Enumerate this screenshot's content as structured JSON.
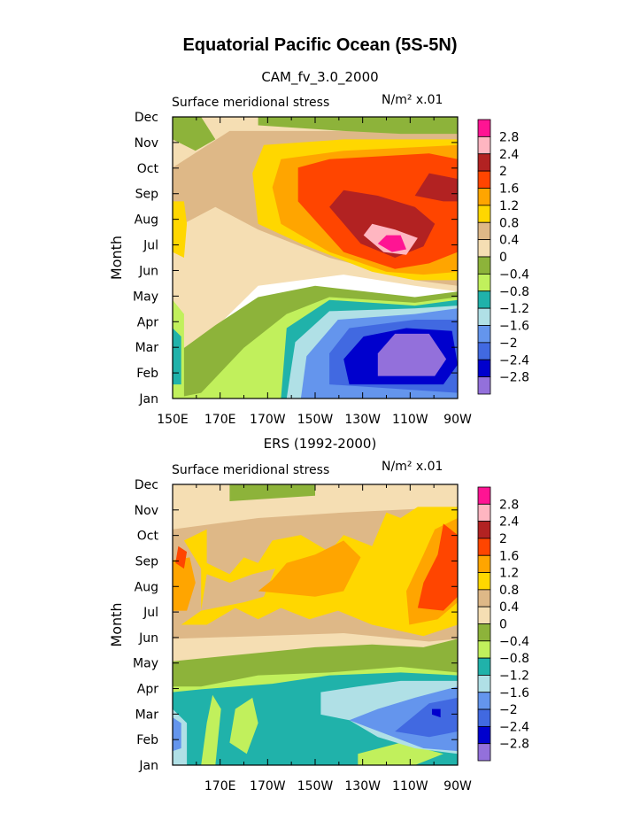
{
  "title": "Equatorial Pacific Ocean (5S-5N)",
  "chart_data": [
    {
      "type": "contour",
      "panel_title": "CAM_fv_3.0_2000",
      "left_label": "Surface meridional stress",
      "units": "N/m² x.01",
      "ylabel": "Month",
      "x_ticks": [
        "150E",
        "170E",
        "170W",
        "150W",
        "130W",
        "110W",
        "90W"
      ],
      "y_ticks": [
        "Jan",
        "Feb",
        "Mar",
        "Apr",
        "May",
        "Jun",
        "Jul",
        "Aug",
        "Sep",
        "Oct",
        "Nov",
        "Dec"
      ],
      "xlim_deg_east": [
        150,
        270
      ],
      "grid": false
    },
    {
      "type": "contour",
      "panel_title": "ERS (1992-2000)",
      "left_label": "Surface meridional stress",
      "units": "N/m² x.01",
      "ylabel": "Month",
      "x_ticks": [
        "",
        "170E",
        "170W",
        "150W",
        "130W",
        "110W",
        "90W"
      ],
      "y_ticks": [
        "Jan",
        "Feb",
        "Mar",
        "Apr",
        "May",
        "Jun",
        "Jul",
        "Aug",
        "Sep",
        "Oct",
        "Nov",
        "Dec"
      ],
      "xlim_deg_east": [
        150,
        270
      ],
      "grid": false
    }
  ],
  "colorbar": {
    "levels": [
      "2.8",
      "2.4",
      "2",
      "1.6",
      "1.2",
      "0.8",
      "0.4",
      "0",
      "−0.4",
      "−0.8",
      "−1.2",
      "−1.6",
      "−2",
      "−2.4",
      "−2.8"
    ],
    "colors": [
      "#ff1493",
      "#ffb6c1",
      "#b22222",
      "#ff4500",
      "#ffa500",
      "#ffd700",
      "#deb887",
      "#f5deb3",
      "#8db33a",
      "#c1f05c",
      "#20b2aa",
      "#b0e0e6",
      "#6495ed",
      "#4169e1",
      "#0000cd",
      "#9370db"
    ]
  }
}
